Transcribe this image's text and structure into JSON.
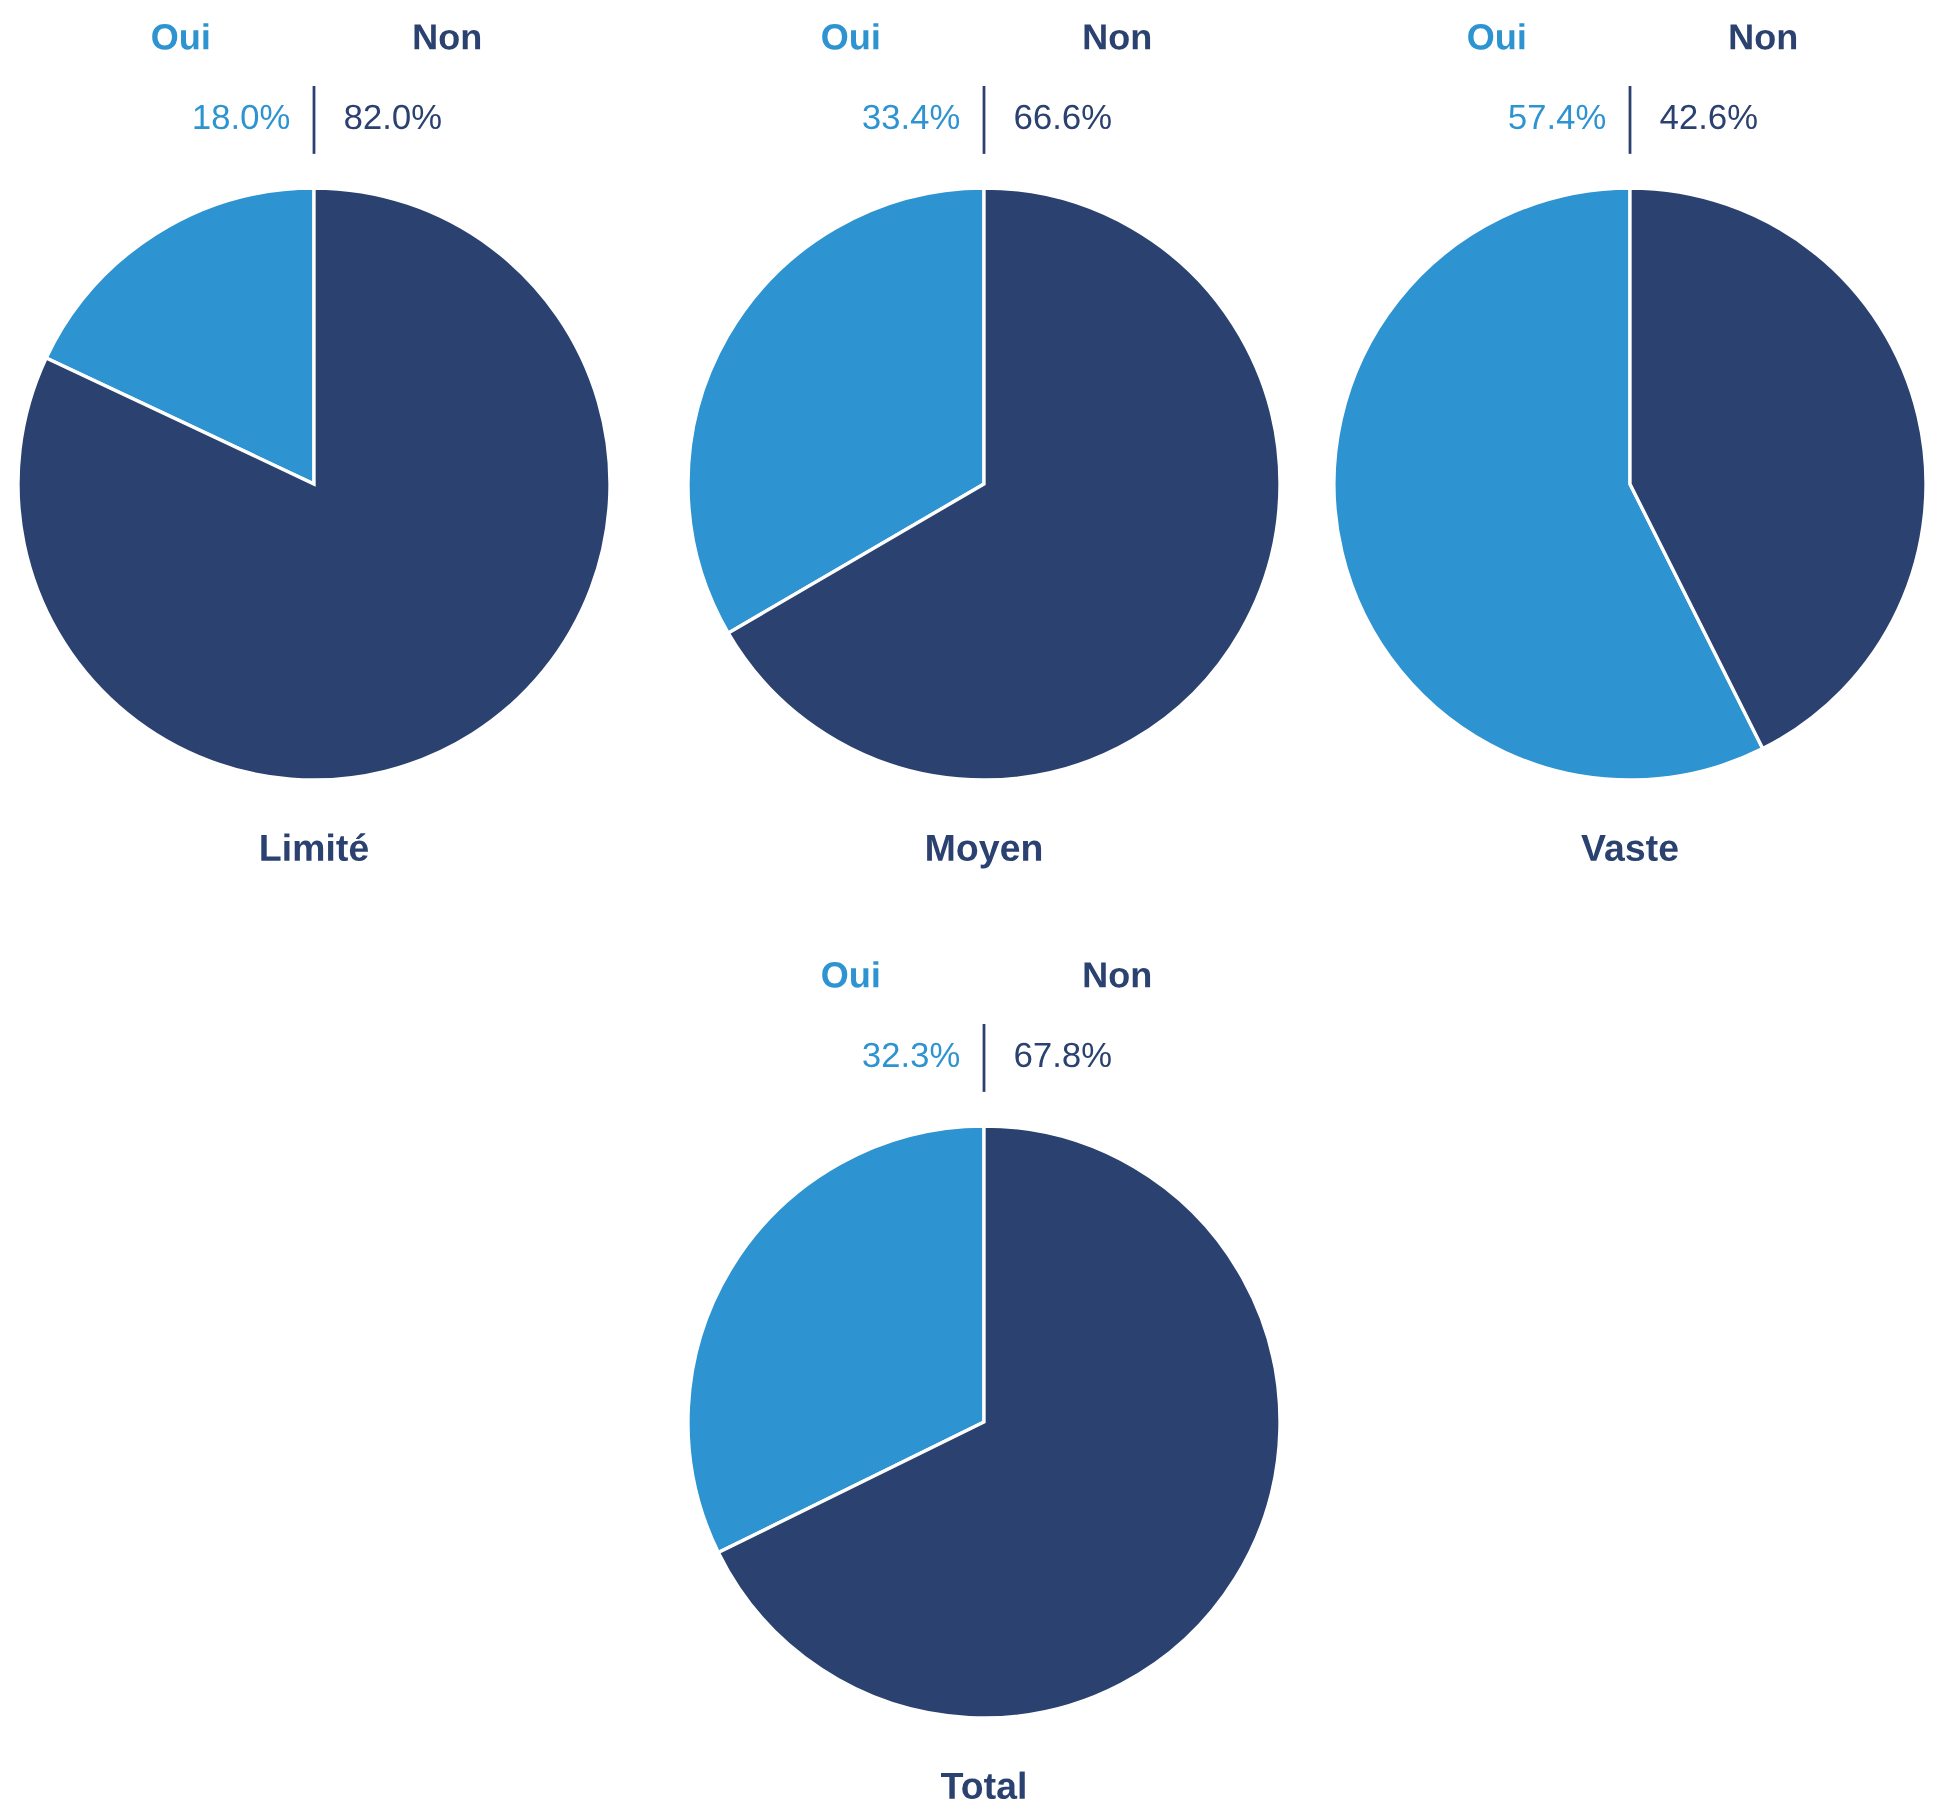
{
  "chart_data": [
    {
      "type": "pie",
      "title": "Limité",
      "categories": [
        "Oui",
        "Non"
      ],
      "values": [
        18.0,
        82.0
      ],
      "value_labels": [
        "18.0%",
        "82.0%"
      ],
      "colors": [
        "#2e93d1",
        "#2b4270"
      ]
    },
    {
      "type": "pie",
      "title": "Moyen",
      "categories": [
        "Oui",
        "Non"
      ],
      "values": [
        33.4,
        66.6
      ],
      "value_labels": [
        "33.4%",
        "66.6%"
      ],
      "colors": [
        "#2e93d1",
        "#2b4270"
      ]
    },
    {
      "type": "pie",
      "title": "Vaste",
      "categories": [
        "Oui",
        "Non"
      ],
      "values": [
        57.4,
        42.6
      ],
      "value_labels": [
        "57.4%",
        "42.6%"
      ],
      "colors": [
        "#2e93d1",
        "#2b4270"
      ]
    },
    {
      "type": "pie",
      "title": "Total",
      "categories": [
        "Oui",
        "Non"
      ],
      "values": [
        32.3,
        67.8
      ],
      "value_labels": [
        "32.3%",
        "67.8%"
      ],
      "colors": [
        "#2e93d1",
        "#2b4270"
      ]
    }
  ]
}
